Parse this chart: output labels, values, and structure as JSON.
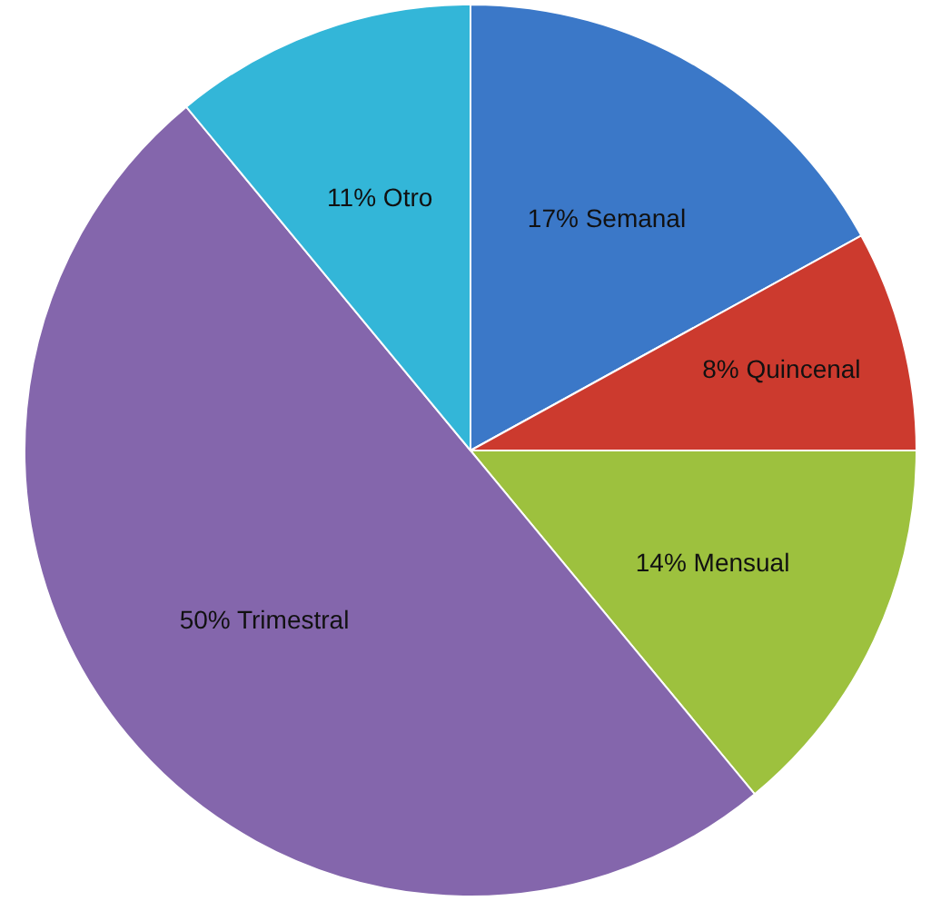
{
  "chart_data": {
    "type": "pie",
    "categories": [
      "Semanal",
      "Quincenal",
      "Mensual",
      "Trimestral",
      "Otro"
    ],
    "values": [
      17,
      8,
      14,
      50,
      11
    ],
    "value_labels": [
      "17%",
      "8%",
      "14%",
      "50%",
      "11%"
    ],
    "colors": [
      "#3b78c8",
      "#cc3a2e",
      "#9dc13e",
      "#8466ac",
      "#33b6d8"
    ],
    "legend": false
  }
}
